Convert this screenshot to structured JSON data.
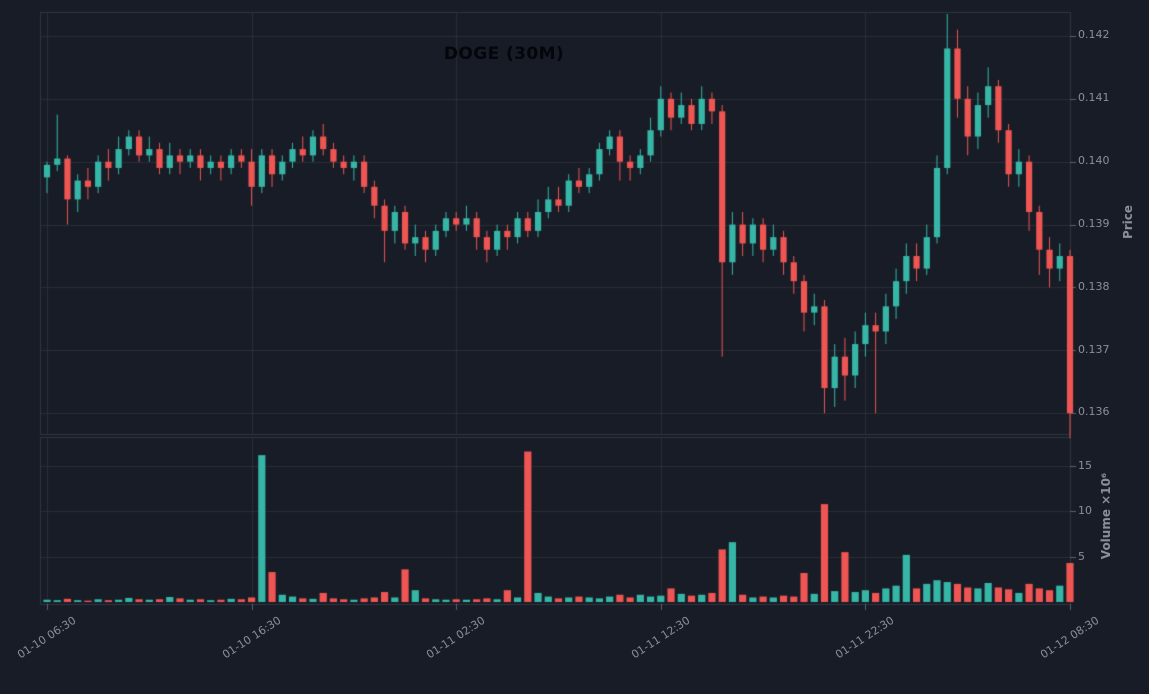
{
  "colors": {
    "background": "#171c26",
    "up": "#36b6a7",
    "down": "#ef5552",
    "grid": "rgba(255,255,255,0.07)",
    "spine": "#2e3442",
    "tick_mark": "#5c6170",
    "tick_text": "#8b8f9b",
    "title_color": "#04060b"
  },
  "chart_data": {
    "type": "candlestick+volume-bar",
    "title": "DOGE (30M)",
    "symbol": "DOGE",
    "timeframe": "30M",
    "price_axis_label": "Price",
    "volume_axis_label": "Volume ×10⁶",
    "price_tick_labels": [
      "0.142",
      "0.141",
      "0.140",
      "0.139",
      "0.138",
      "0.137",
      "0.136"
    ],
    "volume_tick_labels": [
      "15",
      "10",
      "5"
    ],
    "time_tick_labels": [
      "01-10 06:30",
      "01-10 16:30",
      "01-11 02:30",
      "01-11 12:30",
      "01-11 22:30",
      "01-12 08:30"
    ],
    "x_start": "01-10 06:30",
    "x_step_minutes": 30,
    "price_ylim": [
      0.13567,
      0.14238
    ],
    "volume_ylim_millions": [
      0,
      18.2
    ],
    "grid": true,
    "open": [
      0.13975,
      0.13995,
      0.14005,
      0.1394,
      0.1397,
      0.1396,
      0.14,
      0.1399,
      0.1402,
      0.1404,
      0.1401,
      0.1402,
      0.1399,
      0.1401,
      0.14,
      0.1401,
      0.1399,
      0.14,
      0.1399,
      0.1401,
      0.14,
      0.1396,
      0.1401,
      0.1398,
      0.14,
      0.1402,
      0.1401,
      0.1404,
      0.1402,
      0.14,
      0.1399,
      0.14,
      0.1396,
      0.1393,
      0.1389,
      0.1392,
      0.1387,
      0.1388,
      0.1386,
      0.1389,
      0.1391,
      0.139,
      0.1391,
      0.1388,
      0.1386,
      0.1389,
      0.1388,
      0.1391,
      0.1389,
      0.1392,
      0.1394,
      0.1393,
      0.1397,
      0.1396,
      0.1398,
      0.1402,
      0.1404,
      0.14,
      0.1399,
      0.1401,
      0.1405,
      0.141,
      0.1407,
      0.1409,
      0.1406,
      0.141,
      0.1408,
      0.1384,
      0.139,
      0.1387,
      0.139,
      0.1386,
      0.1388,
      0.1384,
      0.1381,
      0.1376,
      0.1377,
      0.1364,
      0.1369,
      0.1366,
      0.1371,
      0.1374,
      0.1373,
      0.1377,
      0.1381,
      0.1385,
      0.1383,
      0.1388,
      0.1399,
      0.1418,
      0.141,
      0.1404,
      0.1409,
      0.1412,
      0.1405,
      0.1398,
      0.14,
      0.1392,
      0.1386,
      0.1383,
      0.1385
    ],
    "high": [
      0.14,
      0.14075,
      0.1401,
      0.1398,
      0.1399,
      0.1401,
      0.1402,
      0.1404,
      0.1405,
      0.1405,
      0.1404,
      0.1403,
      0.1403,
      0.1402,
      0.1402,
      0.1402,
      0.1401,
      0.1401,
      0.1402,
      0.1402,
      0.1402,
      0.1402,
      0.1402,
      0.1401,
      0.1403,
      0.1404,
      0.1405,
      0.1406,
      0.1403,
      0.1401,
      0.1401,
      0.1401,
      0.1397,
      0.1394,
      0.1393,
      0.1393,
      0.139,
      0.1389,
      0.139,
      0.1392,
      0.1392,
      0.1393,
      0.1392,
      0.1389,
      0.139,
      0.139,
      0.1392,
      0.1392,
      0.1394,
      0.1396,
      0.1396,
      0.1398,
      0.1399,
      0.1399,
      0.1403,
      0.1405,
      0.1405,
      0.1401,
      0.1402,
      0.1407,
      0.1412,
      0.1411,
      0.1411,
      0.141,
      0.1412,
      0.1411,
      0.1409,
      0.1392,
      0.1392,
      0.1391,
      0.1391,
      0.139,
      0.1389,
      0.1385,
      0.1382,
      0.1379,
      0.1378,
      0.1371,
      0.1372,
      0.1373,
      0.1376,
      0.1376,
      0.1379,
      0.1383,
      0.1387,
      0.1387,
      0.139,
      0.1401,
      0.14235,
      0.1421,
      0.1412,
      0.1411,
      0.1415,
      0.1413,
      0.1406,
      0.1402,
      0.1401,
      0.1393,
      0.1388,
      0.1387,
      0.1386
    ],
    "low": [
      0.1395,
      0.13985,
      0.139,
      0.1392,
      0.1394,
      0.1395,
      0.1397,
      0.1398,
      0.1401,
      0.14,
      0.14,
      0.1398,
      0.1398,
      0.1398,
      0.1399,
      0.1397,
      0.1398,
      0.1397,
      0.1398,
      0.1399,
      0.1393,
      0.1395,
      0.1396,
      0.1397,
      0.1399,
      0.14,
      0.14,
      0.1401,
      0.1399,
      0.1398,
      0.1397,
      0.1395,
      0.1391,
      0.1384,
      0.1387,
      0.1386,
      0.1385,
      0.1384,
      0.1385,
      0.1388,
      0.1389,
      0.1389,
      0.1386,
      0.1384,
      0.1385,
      0.1386,
      0.1387,
      0.1388,
      0.1388,
      0.1391,
      0.1392,
      0.1392,
      0.1395,
      0.1395,
      0.1397,
      0.1401,
      0.1397,
      0.1397,
      0.1398,
      0.14,
      0.1404,
      0.1405,
      0.1406,
      0.1405,
      0.1405,
      0.1406,
      0.1369,
      0.1382,
      0.1385,
      0.1385,
      0.1384,
      0.1385,
      0.1382,
      0.1379,
      0.1373,
      0.1374,
      0.136,
      0.1361,
      0.1362,
      0.1364,
      0.1369,
      0.136,
      0.1371,
      0.1375,
      0.1379,
      0.1381,
      0.1382,
      0.1387,
      0.1398,
      0.1407,
      0.1401,
      0.1402,
      0.1407,
      0.1403,
      0.1396,
      0.1396,
      0.1389,
      0.1382,
      0.138,
      0.1381,
      0.1356
    ],
    "close": [
      0.13995,
      0.14005,
      0.1394,
      0.1397,
      0.1396,
      0.14,
      0.1399,
      0.1402,
      0.1404,
      0.1401,
      0.1402,
      0.1399,
      0.1401,
      0.14,
      0.1401,
      0.1399,
      0.14,
      0.1399,
      0.1401,
      0.14,
      0.1396,
      0.1401,
      0.1398,
      0.14,
      0.1402,
      0.1401,
      0.1404,
      0.1402,
      0.14,
      0.1399,
      0.14,
      0.1396,
      0.1393,
      0.1389,
      0.1392,
      0.1387,
      0.1388,
      0.1386,
      0.1389,
      0.1391,
      0.139,
      0.1391,
      0.1388,
      0.1386,
      0.1389,
      0.1388,
      0.1391,
      0.1389,
      0.1392,
      0.1394,
      0.1393,
      0.1397,
      0.1396,
      0.1398,
      0.1402,
      0.1404,
      0.14,
      0.1399,
      0.1401,
      0.1405,
      0.141,
      0.1407,
      0.1409,
      0.1406,
      0.141,
      0.1408,
      0.1384,
      0.139,
      0.1387,
      0.139,
      0.1386,
      0.1388,
      0.1384,
      0.1381,
      0.1376,
      0.1377,
      0.1364,
      0.1369,
      0.1366,
      0.1371,
      0.1374,
      0.1373,
      0.1377,
      0.1381,
      0.1385,
      0.1383,
      0.1388,
      0.1399,
      0.1418,
      0.141,
      0.1404,
      0.1409,
      0.1412,
      0.1405,
      0.1398,
      0.14,
      0.1392,
      0.1386,
      0.1383,
      0.1385,
      0.136
    ],
    "volume_millions": [
      0.25,
      0.2,
      0.35,
      0.2,
      0.15,
      0.3,
      0.2,
      0.25,
      0.45,
      0.3,
      0.25,
      0.3,
      0.55,
      0.4,
      0.25,
      0.3,
      0.2,
      0.25,
      0.35,
      0.3,
      0.5,
      16.2,
      3.3,
      0.8,
      0.6,
      0.4,
      0.35,
      1.0,
      0.4,
      0.3,
      0.25,
      0.4,
      0.5,
      1.1,
      0.5,
      3.6,
      1.3,
      0.4,
      0.3,
      0.25,
      0.3,
      0.25,
      0.3,
      0.4,
      0.3,
      1.3,
      0.5,
      16.6,
      1.0,
      0.6,
      0.4,
      0.5,
      0.6,
      0.5,
      0.4,
      0.6,
      0.8,
      0.5,
      0.8,
      0.6,
      0.7,
      1.5,
      0.9,
      0.7,
      0.8,
      1.0,
      5.8,
      6.6,
      0.8,
      0.5,
      0.6,
      0.5,
      0.7,
      0.6,
      3.2,
      0.9,
      10.8,
      1.2,
      5.5,
      1.1,
      1.3,
      1.0,
      1.5,
      1.8,
      5.2,
      1.5,
      2.0,
      2.4,
      2.2,
      2.0,
      1.6,
      1.5,
      2.1,
      1.6,
      1.4,
      1.0,
      2.0,
      1.5,
      1.3,
      1.8,
      4.3
    ]
  }
}
